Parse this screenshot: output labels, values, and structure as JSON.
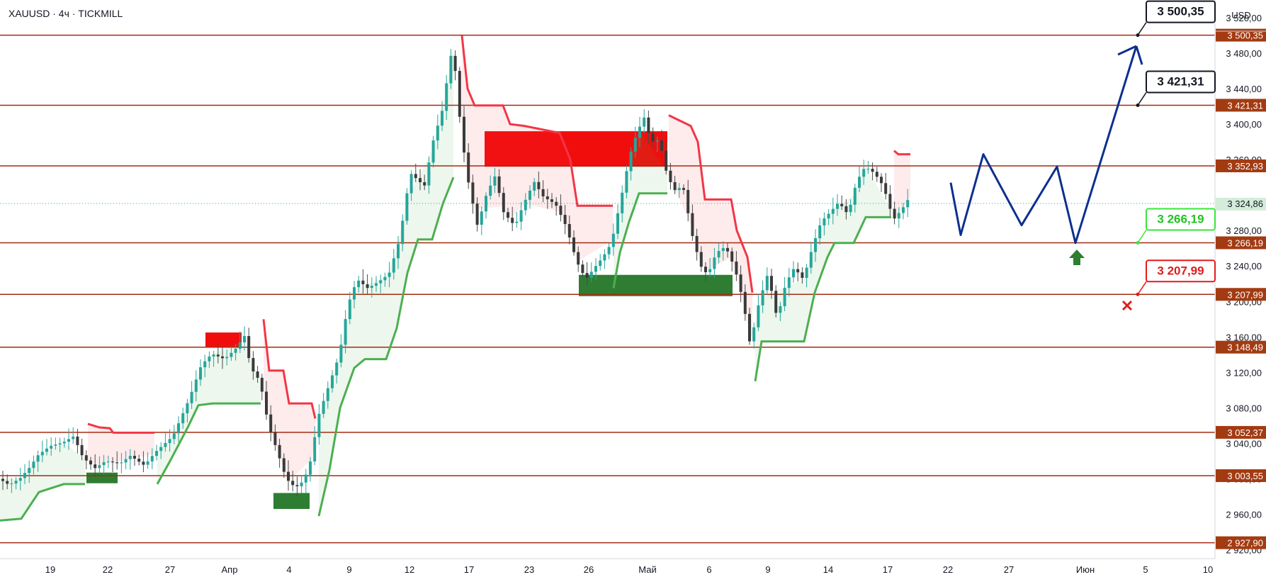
{
  "header": {
    "title": "XAUUSD · 4ч · TICKMILL",
    "currency": "USD"
  },
  "chart_data": {
    "type": "candlestick",
    "symbol": "XAUUSD",
    "timeframe": "4ч",
    "broker": "TICKMILL",
    "ylim": [
      2910,
      3540
    ],
    "grid": false,
    "y_ticks": [
      "3 520,00",
      "3 480,00",
      "3 440,00",
      "3 400,00",
      "3 360,00",
      "3 280,00",
      "3 240,00",
      "3 200,00",
      "3 160,00",
      "3 120,00",
      "3 080,00",
      "3 040,00",
      "3 000,00",
      "2 960,00",
      "2 920,00"
    ],
    "x_ticks": [
      "19",
      "22",
      "27",
      "Апр",
      "4",
      "9",
      "12",
      "17",
      "23",
      "26",
      "Май",
      "6",
      "9",
      "14",
      "17",
      "22",
      "27",
      "Июн",
      "5",
      "10"
    ],
    "levels": [
      {
        "label": "3 500,35",
        "value": 3500.35
      },
      {
        "label": "3 421,31",
        "value": 3421.31
      },
      {
        "label": "3 352,93",
        "value": 3352.93
      },
      {
        "label": "3 266,19",
        "value": 3266.19
      },
      {
        "label": "3 207,99",
        "value": 3207.99
      },
      {
        "label": "3 148,49",
        "value": 3148.49
      },
      {
        "label": "3 052,37",
        "value": 3052.37
      },
      {
        "label": "3 003,55",
        "value": 3003.55
      },
      {
        "label": "2 927,90",
        "value": 2927.9
      }
    ],
    "current_price": {
      "label": "3 324,86",
      "value": 3324.86
    },
    "callouts": [
      {
        "label": "3 500,35",
        "value": 3500.35,
        "style": "target"
      },
      {
        "label": "3 421,31",
        "value": 3421.31,
        "style": "target"
      },
      {
        "label": "3 266,19",
        "value": 3266.19,
        "style": "entry"
      },
      {
        "label": "3 207,99",
        "value": 3207.99,
        "style": "stop"
      }
    ],
    "forecast_path": [
      3334,
      3275,
      3366,
      3286,
      3352,
      3266,
      3488
    ],
    "price_path": [
      [
        0,
        3000
      ],
      [
        14,
        2993
      ],
      [
        30,
        3001
      ],
      [
        42,
        3012
      ],
      [
        55,
        3027
      ],
      [
        72,
        3037
      ],
      [
        90,
        3041
      ],
      [
        105,
        3048
      ],
      [
        118,
        3024
      ],
      [
        135,
        3012
      ],
      [
        150,
        3020
      ],
      [
        170,
        3017
      ],
      [
        185,
        3026
      ],
      [
        205,
        3015
      ],
      [
        220,
        3030
      ],
      [
        245,
        3048
      ],
      [
        268,
        3090
      ],
      [
        285,
        3128
      ],
      [
        300,
        3141
      ],
      [
        318,
        3135
      ],
      [
        338,
        3150
      ],
      [
        345,
        3165
      ],
      [
        355,
        3125
      ],
      [
        368,
        3110
      ],
      [
        380,
        3060
      ],
      [
        392,
        3032
      ],
      [
        405,
        3000
      ],
      [
        418,
        2990
      ],
      [
        430,
        2998
      ],
      [
        440,
        3022
      ],
      [
        450,
        3070
      ],
      [
        465,
        3105
      ],
      [
        480,
        3140
      ],
      [
        492,
        3196
      ],
      [
        505,
        3225
      ],
      [
        520,
        3215
      ],
      [
        535,
        3222
      ],
      [
        550,
        3231
      ],
      [
        565,
        3270
      ],
      [
        580,
        3345
      ],
      [
        600,
        3330
      ],
      [
        612,
        3380
      ],
      [
        625,
        3415
      ],
      [
        640,
        3490
      ],
      [
        652,
        3390
      ],
      [
        662,
        3335
      ],
      [
        675,
        3285
      ],
      [
        688,
        3322
      ],
      [
        700,
        3342
      ],
      [
        712,
        3300
      ],
      [
        728,
        3285
      ],
      [
        740,
        3310
      ],
      [
        755,
        3335
      ],
      [
        768,
        3318
      ],
      [
        785,
        3310
      ],
      [
        800,
        3285
      ],
      [
        815,
        3245
      ],
      [
        828,
        3225
      ],
      [
        840,
        3238
      ],
      [
        852,
        3250
      ],
      [
        864,
        3266
      ],
      [
        878,
        3318
      ],
      [
        890,
        3365
      ],
      [
        900,
        3390
      ],
      [
        910,
        3408
      ],
      [
        920,
        3380
      ],
      [
        932,
        3382
      ],
      [
        940,
        3350
      ],
      [
        952,
        3325
      ],
      [
        965,
        3330
      ],
      [
        978,
        3275
      ],
      [
        990,
        3240
      ],
      [
        1000,
        3230
      ],
      [
        1012,
        3255
      ],
      [
        1025,
        3262
      ],
      [
        1038,
        3238
      ],
      [
        1050,
        3200
      ],
      [
        1060,
        3150
      ],
      [
        1072,
        3198
      ],
      [
        1085,
        3232
      ],
      [
        1098,
        3180
      ],
      [
        1110,
        3220
      ],
      [
        1122,
        3238
      ],
      [
        1135,
        3225
      ],
      [
        1148,
        3262
      ],
      [
        1160,
        3290
      ],
      [
        1172,
        3300
      ],
      [
        1185,
        3312
      ],
      [
        1198,
        3298
      ],
      [
        1210,
        3335
      ],
      [
        1222,
        3352
      ],
      [
        1235,
        3345
      ],
      [
        1248,
        3330
      ],
      [
        1262,
        3292
      ],
      [
        1275,
        3305
      ],
      [
        1285,
        3318
      ]
    ],
    "supertrend_up_segments": [
      [
        [
          0,
          2953
        ],
        [
          30,
          2955
        ],
        [
          55,
          2985
        ],
        [
          90,
          2994
        ],
        [
          120,
          2994
        ]
      ],
      [
        [
          222,
          2994
        ],
        [
          240,
          3020
        ],
        [
          265,
          3058
        ],
        [
          280,
          3083
        ],
        [
          300,
          3085
        ],
        [
          340,
          3085
        ],
        [
          368,
          3085
        ]
      ],
      [
        [
          450,
          2958
        ],
        [
          465,
          3010
        ],
        [
          480,
          3080
        ],
        [
          500,
          3125
        ],
        [
          515,
          3135
        ],
        [
          545,
          3135
        ],
        [
          560,
          3170
        ],
        [
          575,
          3232
        ],
        [
          590,
          3270
        ],
        [
          610,
          3270
        ],
        [
          625,
          3310
        ],
        [
          640,
          3340
        ]
      ],
      [
        [
          866,
          3215
        ],
        [
          875,
          3255
        ],
        [
          888,
          3290
        ],
        [
          902,
          3322
        ],
        [
          942,
          3322
        ]
      ],
      [
        [
          1066,
          3110
        ],
        [
          1075,
          3155
        ],
        [
          1135,
          3155
        ],
        [
          1150,
          3210
        ],
        [
          1168,
          3250
        ],
        [
          1178,
          3266
        ],
        [
          1205,
          3266
        ],
        [
          1222,
          3295
        ],
        [
          1258,
          3295
        ]
      ]
    ],
    "supertrend_down_segments": [
      [
        [
          124,
          3062
        ],
        [
          140,
          3058
        ],
        [
          155,
          3057
        ],
        [
          160,
          3052
        ],
        [
          218,
          3052
        ]
      ],
      [
        [
          372,
          3180
        ],
        [
          380,
          3122
        ],
        [
          400,
          3122
        ],
        [
          408,
          3085
        ],
        [
          440,
          3085
        ],
        [
          445,
          3068
        ]
      ],
      [
        [
          652,
          3500
        ],
        [
          660,
          3440
        ],
        [
          670,
          3421
        ],
        [
          710,
          3421
        ],
        [
          720,
          3400
        ],
        [
          740,
          3398
        ],
        [
          790,
          3390
        ],
        [
          805,
          3360
        ],
        [
          815,
          3308
        ],
        [
          865,
          3308
        ]
      ],
      [
        [
          944,
          3410
        ],
        [
          975,
          3398
        ],
        [
          985,
          3380
        ],
        [
          995,
          3315
        ],
        [
          1032,
          3315
        ],
        [
          1040,
          3280
        ],
        [
          1055,
          3250
        ],
        [
          1062,
          3210
        ]
      ],
      [
        [
          1262,
          3370
        ],
        [
          1268,
          3366
        ],
        [
          1285,
          3366
        ]
      ]
    ],
    "supply_zones": [
      {
        "x0": 290,
        "x1": 341,
        "y0": 3148,
        "y1": 3165
      },
      {
        "x0": 684,
        "x1": 942,
        "y0": 3352,
        "y1": 3392
      }
    ],
    "demand_zones": [
      {
        "x0": 122,
        "x1": 166,
        "y0": 2995,
        "y1": 3007
      },
      {
        "x0": 386,
        "x1": 437,
        "y0": 2966,
        "y1": 2984
      },
      {
        "x0": 817,
        "x1": 1034,
        "y0": 3206,
        "y1": 3230
      }
    ]
  }
}
